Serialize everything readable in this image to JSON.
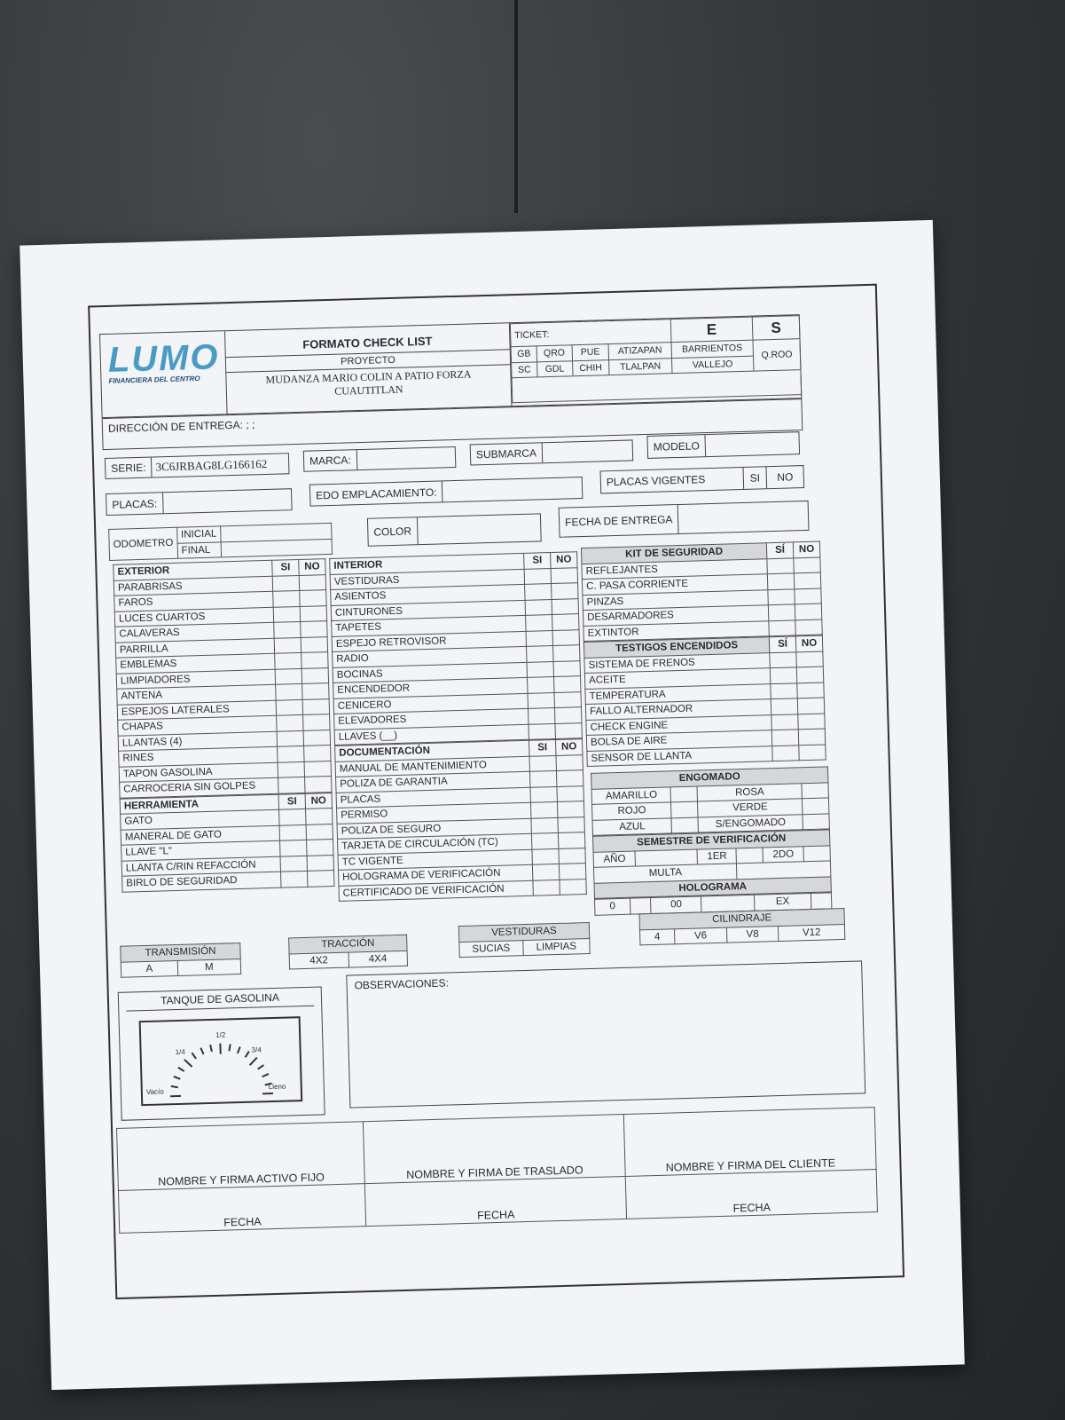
{
  "header": {
    "logo": "LUMO",
    "logo_sub": "FINANCIERA DEL CENTRO",
    "title": "FORMATO CHECK LIST",
    "proyecto_label": "PROYECTO",
    "proyecto": "MUDANZA MARIO COLIN A PATIO FORZA CUAUTITLAN",
    "ticket_label": "TICKET:",
    "e": "E",
    "s": "S",
    "sites_row1": [
      "GB",
      "QRO",
      "PUE",
      "ATIZAPAN",
      "BARRIENTOS"
    ],
    "sites_row2": [
      "SC",
      "GDL",
      "CHIH",
      "TLALPAN",
      "VALLEJO"
    ],
    "qroo": "Q.ROO"
  },
  "direccion": {
    "label": "DIRECCIÓN DE ENTREGA:",
    "value": "; ;"
  },
  "fields": {
    "serie_label": "SERIE:",
    "serie": "3C6JRBAG8LG166162",
    "marca_label": "MARCA:",
    "submarca_label": "SUBMARCA",
    "modelo_label": "MODELO",
    "placas_label": "PLACAS:",
    "edo_label": "EDO EMPLACAMIENTO:",
    "placas_vigentes_label": "PLACAS VIGENTES",
    "si": "SI",
    "no": "NO",
    "odometro_label": "ODOMETRO",
    "inicial": "INICIAL",
    "final": "FINAL",
    "color_label": "COLOR",
    "fecha_entrega_label": "FECHA DE ENTREGA"
  },
  "checklist": {
    "col1": [
      {
        "title": "EXTERIOR",
        "si": "SI",
        "no": "NO",
        "items": [
          "PARABRISAS",
          "FAROS",
          "LUCES CUARTOS",
          "CALAVERAS",
          "PARRILLA",
          "EMBLEMAS",
          "LIMPIADORES",
          "ANTENA",
          "ESPEJOS LATERALES",
          "CHAPAS",
          "LLANTAS (4)",
          "RINES",
          "TAPON GASOLINA",
          "CARROCERIA SIN GOLPES"
        ]
      },
      {
        "title": "HERRAMIENTA",
        "si": "SI",
        "no": "NO",
        "items": [
          "GATO",
          "MANERAL DE GATO",
          "LLAVE \"L\"",
          "LLANTA C/RIN REFACCIÓN",
          "BIRLO DE SEGURIDAD"
        ]
      }
    ],
    "col2": [
      {
        "title": "INTERIOR",
        "si": "SI",
        "no": "NO",
        "items": [
          "VESTIDURAS",
          "ASIENTOS",
          "CINTURONES",
          "TAPETES",
          "ESPEJO RETROVISOR",
          "RADIO",
          "BOCINAS",
          "ENCENDEDOR",
          "CENICERO",
          "ELEVADORES",
          "LLAVES (__)"
        ]
      },
      {
        "title": "DOCUMENTACIÓN",
        "si": "SI",
        "no": "NO",
        "items": [
          "MANUAL DE MANTENIMIENTO",
          "POLIZA DE GARANTIA",
          "PLACAS",
          "PERMISO",
          "POLIZA DE SEGURO",
          "TARJETA DE CIRCULACIÓN (TC)",
          "TC VIGENTE",
          "HOLOGRAMA DE VERIFICACIÓN",
          "CERTIFICADO DE VERIFICACIÓN"
        ]
      }
    ],
    "col3": [
      {
        "title": "KIT DE SEGURIDAD",
        "si": "SÍ",
        "no": "NO",
        "items": [
          "REFLEJANTES",
          "C. PASA CORRIENTE",
          "PINZAS",
          "DESARMADORES",
          "EXTINTOR"
        ]
      },
      {
        "title": "TESTIGOS ENCENDIDOS",
        "si": "SÍ",
        "no": "NO",
        "items": [
          "SISTEMA DE FRENOS",
          "ACEITE",
          "TEMPERATURA",
          "FALLO ALTERNADOR",
          "CHECK ENGINE",
          "BOLSA DE AIRE",
          "SENSOR DE LLANTA"
        ]
      }
    ]
  },
  "engomado": {
    "title": "ENGOMADO",
    "rows": [
      [
        "AMARILLO",
        "ROSA"
      ],
      [
        "ROJO",
        "VERDE"
      ],
      [
        "AZUL",
        "S/ENGOMADO"
      ]
    ]
  },
  "semestre": {
    "title": "SEMESTRE DE VERIFICACIÓN",
    "ano": "AÑO",
    "primero": "1ER",
    "segundo": "2DO",
    "multa": "MULTA"
  },
  "holograma": {
    "title": "HOLOGRAMA",
    "options": [
      "0",
      "00",
      "EX"
    ]
  },
  "transmision": {
    "title": "TRANSMISIÓN",
    "options": [
      "A",
      "M"
    ]
  },
  "traccion": {
    "title": "TRACCIÓN",
    "options": [
      "4X2",
      "4X4"
    ]
  },
  "vestiduras": {
    "title": "VESTIDURAS",
    "options": [
      "SUCIAS",
      "LIMPIAS"
    ]
  },
  "cilindraje": {
    "title": "CILINDRAJE",
    "options": [
      "4",
      "V6",
      "V8",
      "V12"
    ]
  },
  "tanque": {
    "title": "TANQUE DE GASOLINA",
    "vacio": "Vacío",
    "q1": "1/4",
    "half": "1/2",
    "q3": "3/4",
    "lleno": "Lleno"
  },
  "observaciones": {
    "label": "OBSERVACIONES:"
  },
  "firmas": {
    "activo": "NOMBRE Y FIRMA ACTIVO FIJO",
    "traslado": "NOMBRE Y FIRMA DE TRASLADO",
    "cliente": "NOMBRE Y FIRMA DEL CLIENTE",
    "fecha": "FECHA"
  }
}
